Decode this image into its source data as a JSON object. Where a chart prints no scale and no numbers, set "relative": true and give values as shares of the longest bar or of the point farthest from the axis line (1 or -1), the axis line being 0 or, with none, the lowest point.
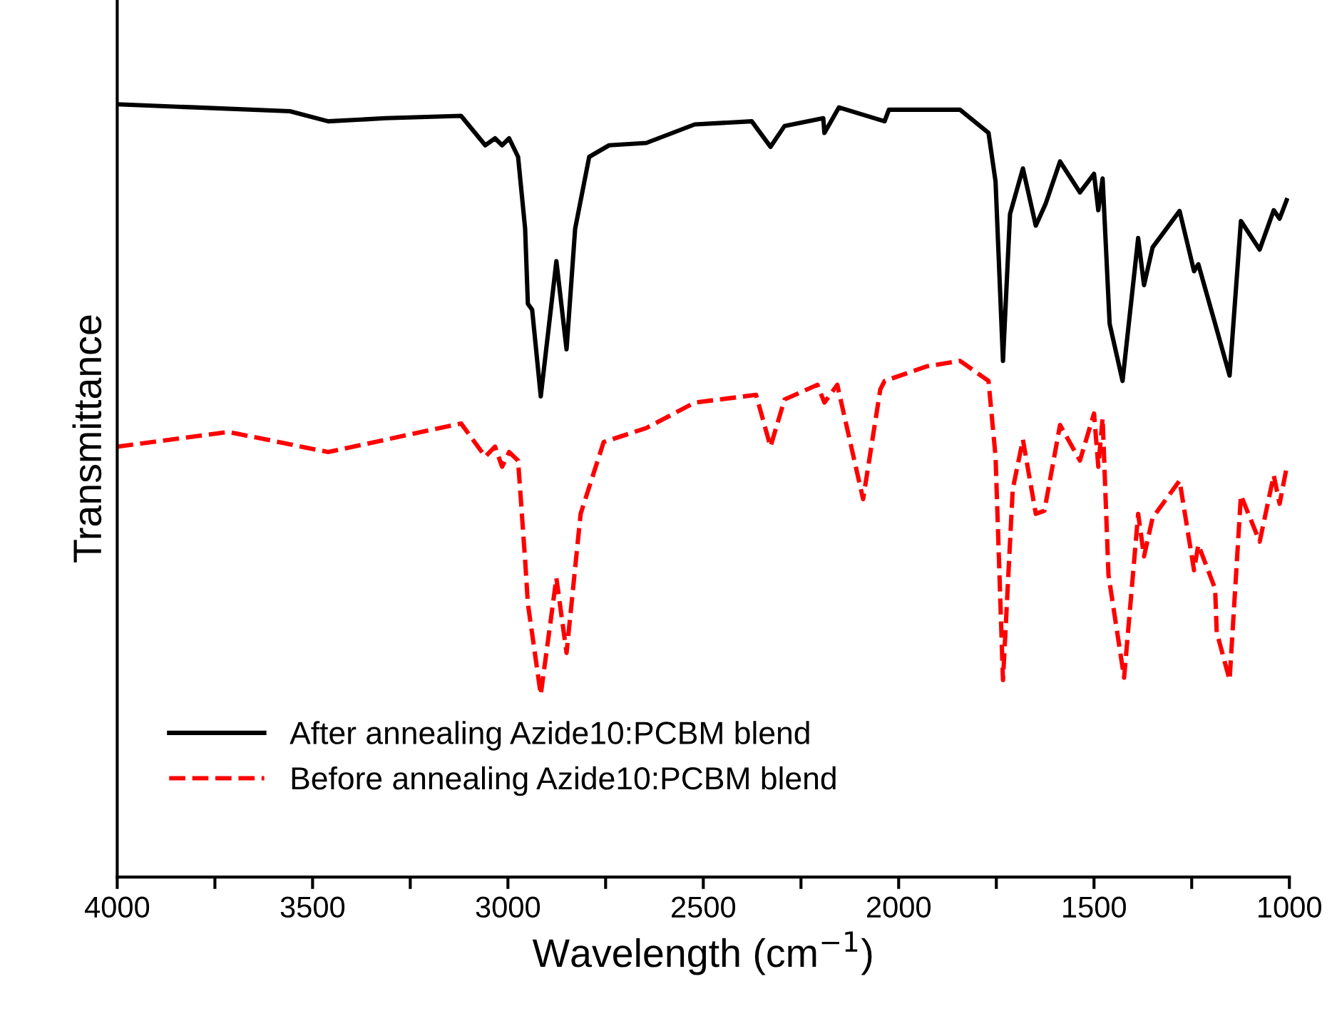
{
  "chart_data": {
    "type": "line",
    "relative": true,
    "xlabel": "Wavelength (cm$^{−1}$)",
    "ylabel": "Transmittance",
    "xlim": [
      4000,
      1000
    ],
    "xticks": [
      4000,
      {
        "value": 3750,
        "label": null
      },
      3500,
      {
        "value": 3250,
        "label": null
      },
      3000,
      {
        "value": 2750,
        "label": null
      },
      2500,
      {
        "value": 2250,
        "label": null
      },
      2000,
      {
        "value": 1750,
        "label": null
      },
      1500,
      {
        "value": 1250,
        "label": null
      },
      1000
    ],
    "legend": "bottom left",
    "grid": false,
    "marker": "none",
    "series": [
      {
        "name": "After annealing Azide10:PCBM blend",
        "color": "#000000",
        "line_style": "solid",
        "x": [
          4000,
          3800,
          3558,
          3460,
          3314,
          3120,
          3058,
          3033,
          3015,
          2997,
          2974,
          2956,
          2949,
          2938,
          2916,
          2876,
          2850,
          2828,
          2792,
          2741,
          2646,
          2522,
          2376,
          2328,
          2292,
          2193,
          2190,
          2153,
          2036,
          2025,
          1843,
          1770,
          1752,
          1733,
          1715,
          1682,
          1649,
          1624,
          1587,
          1536,
          1500,
          1489,
          1478,
          1460,
          1427,
          1387,
          1372,
          1350,
          1281,
          1244,
          1233,
          1190,
          1153,
          1124,
          1076,
          1040,
          1025,
          1007
        ],
        "values": [
          1.0,
          0.996,
          0.991,
          0.978,
          0.982,
          0.985,
          0.947,
          0.956,
          0.947,
          0.956,
          0.932,
          0.839,
          0.742,
          0.734,
          0.622,
          0.797,
          0.683,
          0.839,
          0.932,
          0.947,
          0.95,
          0.974,
          0.978,
          0.945,
          0.972,
          0.982,
          0.963,
          0.996,
          0.978,
          0.993,
          0.993,
          0.963,
          0.9,
          0.668,
          0.858,
          0.917,
          0.843,
          0.871,
          0.926,
          0.886,
          0.91,
          0.863,
          0.904,
          0.716,
          0.642,
          0.827,
          0.766,
          0.815,
          0.862,
          0.784,
          0.793,
          0.716,
          0.649,
          0.849,
          0.812,
          0.863,
          0.852,
          0.876
        ]
      },
      {
        "name": "Before annealing Azide10:PCBM blend",
        "color": "#ff0000",
        "line_style": "dashed",
        "x": [
          4000,
          3715,
          3460,
          3120,
          3058,
          3033,
          3015,
          2997,
          2974,
          2956,
          2949,
          2916,
          2876,
          2850,
          2814,
          2755,
          2646,
          2522,
          2365,
          2328,
          2292,
          2208,
          2190,
          2157,
          2091,
          2047,
          2036,
          1927,
          1843,
          1770,
          1752,
          1733,
          1708,
          1682,
          1649,
          1627,
          1587,
          1536,
          1500,
          1489,
          1478,
          1463,
          1423,
          1387,
          1372,
          1350,
          1281,
          1244,
          1233,
          1190,
          1186,
          1153,
          1124,
          1076,
          1040,
          1025,
          1007
        ],
        "values": [
          0.557,
          0.576,
          0.55,
          0.587,
          0.544,
          0.557,
          0.531,
          0.55,
          0.539,
          0.41,
          0.354,
          0.236,
          0.387,
          0.29,
          0.47,
          0.563,
          0.581,
          0.614,
          0.624,
          0.557,
          0.618,
          0.637,
          0.614,
          0.637,
          0.489,
          0.631,
          0.642,
          0.661,
          0.668,
          0.642,
          0.544,
          0.255,
          0.502,
          0.566,
          0.47,
          0.474,
          0.585,
          0.539,
          0.6,
          0.531,
          0.594,
          0.391,
          0.258,
          0.47,
          0.415,
          0.465,
          0.513,
          0.397,
          0.43,
          0.373,
          0.317,
          0.255,
          0.494,
          0.434,
          0.52,
          0.483,
          0.53
        ]
      }
    ]
  }
}
